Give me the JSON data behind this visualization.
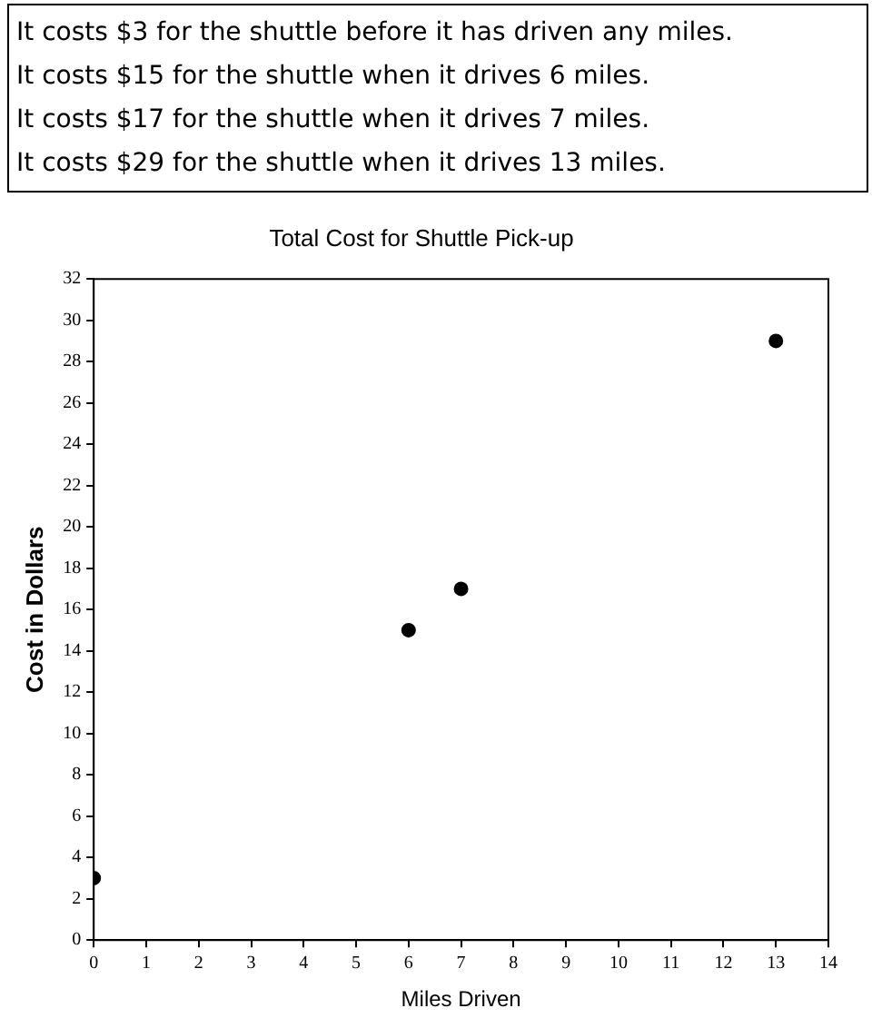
{
  "chart_data": {
    "type": "scatter",
    "title": "Total Cost for Shuttle Pick-up",
    "xlabel": "Miles Driven",
    "ylabel": "Cost in Dollars",
    "annotations": [
      "It costs $3 for the shuttle before it has driven any miles.",
      "It costs $15 for the shuttle when it drives 6 miles.",
      "It costs $17 for the shuttle when it drives 7 miles.",
      "It costs $29 for the shuttle when it drives 13 miles."
    ],
    "x": [
      0,
      6,
      7,
      13
    ],
    "values": [
      3,
      15,
      17,
      29
    ],
    "color": "#000000",
    "marker": "circle",
    "xlim": [
      0,
      14
    ],
    "xticks": [
      0,
      1,
      2,
      3,
      4,
      5,
      6,
      7,
      8,
      9,
      10,
      11,
      12,
      13,
      14
    ],
    "ylim": [
      0,
      32
    ],
    "yticks": [
      0,
      2,
      4,
      6,
      8,
      10,
      12,
      14,
      16,
      18,
      20,
      22,
      24,
      26,
      28,
      30,
      32
    ]
  }
}
